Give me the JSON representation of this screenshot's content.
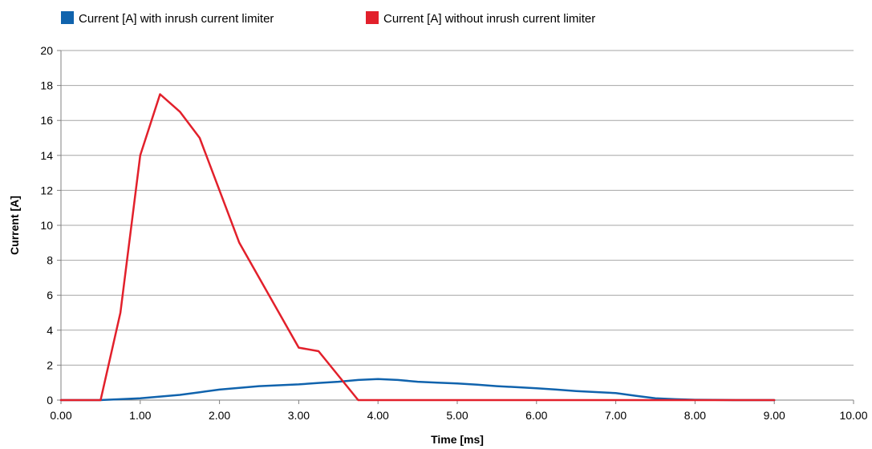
{
  "chart_data": {
    "type": "line",
    "title": "",
    "xlabel": "Time [ms]",
    "ylabel": "Current [A]",
    "xlim": [
      0,
      10
    ],
    "ylim": [
      0,
      20
    ],
    "x_ticks": [
      0,
      1,
      2,
      3,
      4,
      5,
      6,
      7,
      8,
      9,
      10
    ],
    "x_tick_labels": [
      "0.00",
      "1.00",
      "2.00",
      "3.00",
      "4.00",
      "5.00",
      "6.00",
      "7.00",
      "8.00",
      "9.00",
      "10.00"
    ],
    "y_ticks": [
      0,
      2,
      4,
      6,
      8,
      10,
      12,
      14,
      16,
      18,
      20
    ],
    "y_tick_labels": [
      "0",
      "2",
      "4",
      "6",
      "8",
      "10",
      "12",
      "14",
      "16",
      "18",
      "20"
    ],
    "grid": "horizontal",
    "legend_position": "top-left",
    "series": [
      {
        "name": "Current [A] with inrush current limiter",
        "color": "#1063ad",
        "x": [
          0,
          0.5,
          0.75,
          1.0,
          1.25,
          1.5,
          1.75,
          2.0,
          2.25,
          2.5,
          2.75,
          3.0,
          3.25,
          3.5,
          3.75,
          4.0,
          4.25,
          4.5,
          4.75,
          5.0,
          5.25,
          5.5,
          5.75,
          6.0,
          6.25,
          6.5,
          6.75,
          7.0,
          7.25,
          7.5,
          7.75,
          8.0,
          8.25,
          8.5,
          8.75,
          9.0
        ],
        "y": [
          0,
          0,
          0.05,
          0.1,
          0.2,
          0.3,
          0.45,
          0.6,
          0.7,
          0.8,
          0.85,
          0.9,
          0.98,
          1.05,
          1.15,
          1.2,
          1.15,
          1.05,
          1.0,
          0.95,
          0.88,
          0.8,
          0.74,
          0.68,
          0.6,
          0.52,
          0.46,
          0.4,
          0.25,
          0.1,
          0.05,
          0.02,
          0.01,
          0,
          0,
          0
        ]
      },
      {
        "name": "Current [A] without inrush current limiter",
        "color": "#e2202b",
        "x": [
          0,
          0.5,
          0.75,
          1.0,
          1.25,
          1.5,
          1.75,
          2.0,
          2.25,
          2.5,
          2.75,
          3.0,
          3.25,
          3.5,
          3.75,
          4.0,
          5.0,
          6.0,
          7.0,
          8.0,
          9.0
        ],
        "y": [
          0,
          0,
          5,
          14,
          17.5,
          16.5,
          15,
          12,
          9,
          7,
          5,
          3,
          2.8,
          1.4,
          0,
          0,
          0,
          0,
          0,
          0,
          0
        ]
      }
    ]
  }
}
